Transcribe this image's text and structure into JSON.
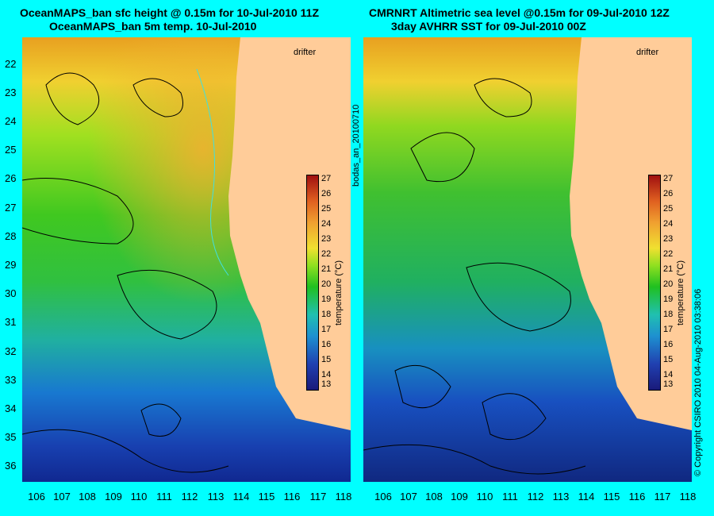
{
  "left_panel": {
    "title_line1": "OceanMAPS_ban sfc height @ 0.15m for 10-Jul-2010 11Z",
    "title_line2": "OceanMAPS_ban 5m temp. 10-Jul-2010"
  },
  "right_panel": {
    "title_line1": "CMRNRT Altimetric sea level  @0.15m  for 09-Jul-2010 12Z",
    "title_line2": "3day AVHRR SST for 09-Jul-2010 00Z"
  },
  "latitudes": [
    "22",
    "23",
    "24",
    "25",
    "26",
    "27",
    "28",
    "29",
    "30",
    "31",
    "32",
    "33",
    "34",
    "35",
    "36"
  ],
  "longitudes": [
    "106",
    "107",
    "108",
    "109",
    "110",
    "111",
    "112",
    "113",
    "114",
    "115",
    "116",
    "117",
    "118"
  ],
  "colorbar": {
    "label": "temperature (°C)",
    "ticks": [
      "27",
      "26",
      "25",
      "24",
      "23",
      "22",
      "21",
      "20",
      "19",
      "18",
      "17",
      "16",
      "15",
      "14",
      "13"
    ]
  },
  "legend": {
    "drifter": "drifter"
  },
  "side_text": {
    "product_id": "bodas_an_20100710",
    "copyright": "© Copyright CSIRO 2010   04-Aug-2010 03:38:06"
  },
  "colors": {
    "background": "#00ffff",
    "land": "#ffcc99",
    "drifter": "#ff33ff"
  }
}
